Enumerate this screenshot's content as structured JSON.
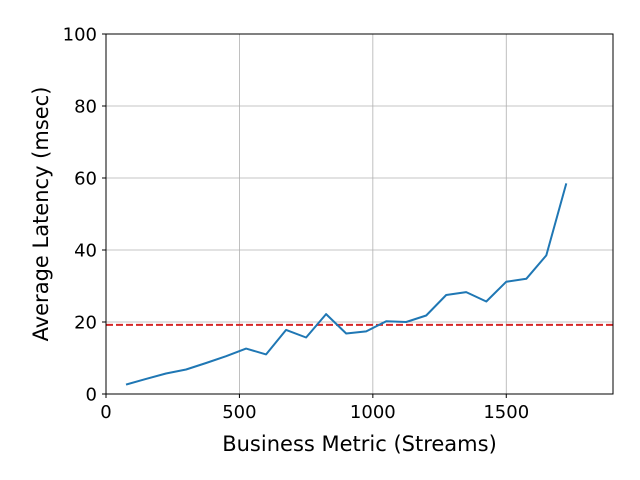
{
  "chart_data": {
    "type": "line",
    "title": "",
    "xlabel": "Business Metric (Streams)",
    "ylabel": "Average Latency (msec)",
    "xlim": [
      0,
      1900
    ],
    "ylim": [
      0,
      100
    ],
    "xticks": [
      0,
      500,
      1000,
      1500
    ],
    "yticks": [
      0,
      20,
      40,
      60,
      80,
      100
    ],
    "grid": true,
    "colors": {
      "series": "#1f77b4",
      "threshold": "#d62728",
      "grid": "#b0b0b0"
    },
    "series": [
      {
        "x": [
          75,
          150,
          225,
          300,
          375,
          450,
          525,
          600,
          675,
          750,
          825,
          900,
          975,
          1050,
          1125,
          1200,
          1275,
          1350,
          1425,
          1500,
          1575,
          1650,
          1725
        ],
        "y": [
          2.6,
          4.2,
          5.7,
          6.8,
          8.6,
          10.5,
          12.6,
          11.0,
          17.8,
          15.7,
          22.2,
          16.8,
          17.4,
          20.2,
          20.0,
          21.8,
          27.5,
          28.3,
          25.7,
          31.2,
          32.0,
          38.5,
          58.5
        ]
      }
    ],
    "reference_lines": [
      {
        "orientation": "horizontal",
        "y": 19.2,
        "style": "dashed"
      }
    ]
  }
}
